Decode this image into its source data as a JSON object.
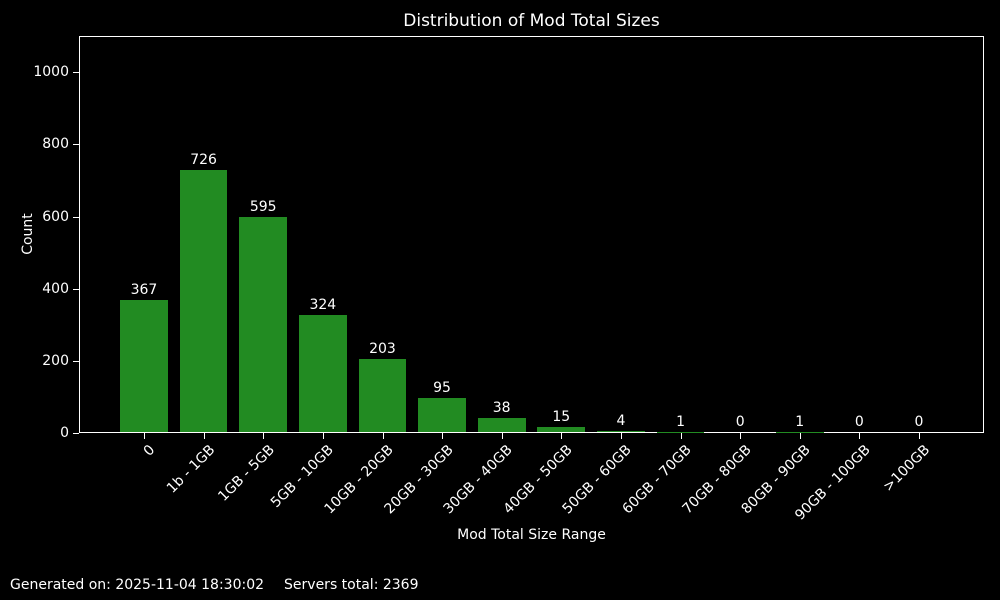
{
  "title": "Distribution of Mod Total Sizes",
  "footer": {
    "generated": "Generated on: 2025-11-04 18:30:02",
    "servers_total": "Servers total: 2369"
  },
  "chart_data": {
    "type": "bar",
    "title": "Distribution of Mod Total Sizes",
    "xlabel": "Mod Total Size Range",
    "ylabel": "Count",
    "categories": [
      "0",
      "1b - 1GB",
      "1GB - 5GB",
      "5GB - 10GB",
      "10GB - 20GB",
      "20GB - 30GB",
      "30GB - 40GB",
      "40GB - 50GB",
      "50GB - 60GB",
      "60GB - 70GB",
      "70GB - 80GB",
      "80GB - 90GB",
      "90GB - 100GB",
      ">100GB"
    ],
    "values": [
      367,
      726,
      595,
      324,
      203,
      95,
      38,
      15,
      4,
      1,
      0,
      1,
      0,
      0
    ],
    "bar_value_labels": [
      "367",
      "726",
      "595",
      "324",
      "203",
      "95",
      "38",
      "15",
      "4",
      "1",
      "0",
      "1",
      "0",
      "0"
    ],
    "yticks": [
      0,
      200,
      400,
      600,
      800,
      1000
    ],
    "ylim": [
      0,
      1100
    ],
    "xlabel_rotation_deg": 45,
    "grid": false,
    "legend": null,
    "colors": {
      "bar": "#228B22",
      "background": "#000000",
      "text": "#ffffff",
      "axis": "#ffffff"
    }
  }
}
